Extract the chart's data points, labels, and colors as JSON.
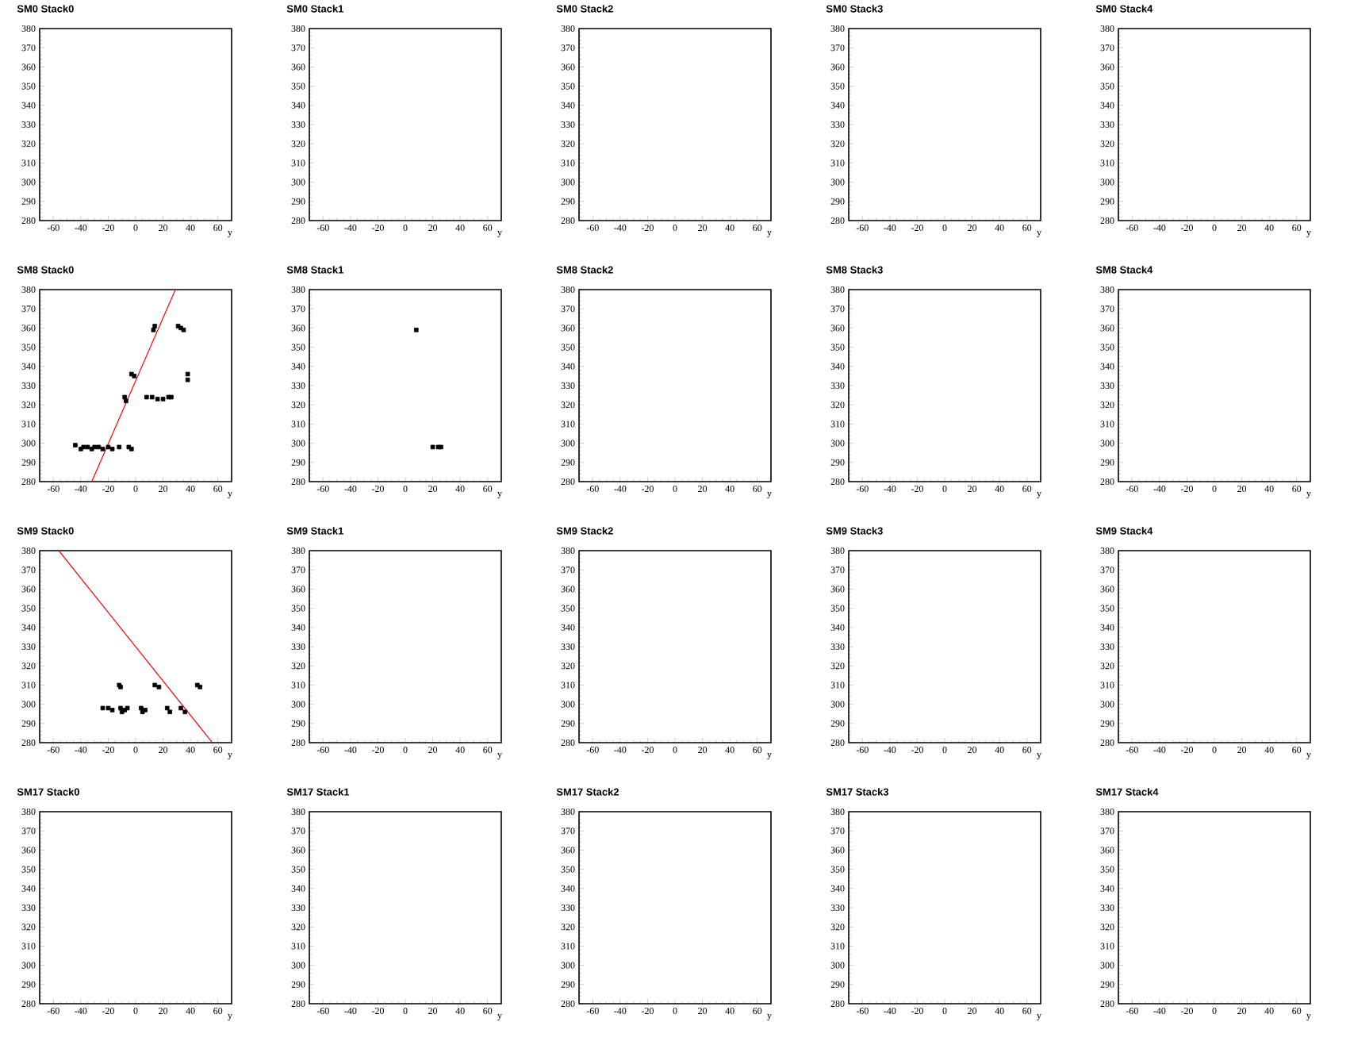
{
  "chart_data": [
    {
      "type": "scatter",
      "title": "SM0 Stack0",
      "xlabel": "y",
      "xlim": [
        -70,
        70
      ],
      "ylim": [
        280,
        380
      ],
      "xticks": [
        -60,
        -40,
        -20,
        0,
        20,
        40,
        60
      ],
      "yticks": [
        280,
        290,
        300,
        310,
        320,
        330,
        340,
        350,
        360,
        370,
        380
      ]
    },
    {
      "type": "scatter",
      "title": "SM0 Stack1",
      "xlabel": "y",
      "xlim": [
        -70,
        70
      ],
      "ylim": [
        280,
        380
      ],
      "xticks": [
        -60,
        -40,
        -20,
        0,
        20,
        40,
        60
      ],
      "yticks": [
        280,
        290,
        300,
        310,
        320,
        330,
        340,
        350,
        360,
        370,
        380
      ]
    },
    {
      "type": "scatter",
      "title": "SM0 Stack2",
      "xlabel": "y",
      "xlim": [
        -70,
        70
      ],
      "ylim": [
        280,
        380
      ],
      "xticks": [
        -60,
        -40,
        -20,
        0,
        20,
        40,
        60
      ],
      "yticks": [
        280,
        290,
        300,
        310,
        320,
        330,
        340,
        350,
        360,
        370,
        380
      ]
    },
    {
      "type": "scatter",
      "title": "SM0 Stack3",
      "xlabel": "y",
      "xlim": [
        -70,
        70
      ],
      "ylim": [
        280,
        380
      ],
      "xticks": [
        -60,
        -40,
        -20,
        0,
        20,
        40,
        60
      ],
      "yticks": [
        280,
        290,
        300,
        310,
        320,
        330,
        340,
        350,
        360,
        370,
        380
      ]
    },
    {
      "type": "scatter",
      "title": "SM0 Stack4",
      "xlabel": "y",
      "xlim": [
        -70,
        70
      ],
      "ylim": [
        280,
        380
      ],
      "xticks": [
        -60,
        -40,
        -20,
        0,
        20,
        40,
        60
      ],
      "yticks": [
        280,
        290,
        300,
        310,
        320,
        330,
        340,
        350,
        360,
        370,
        380
      ]
    },
    {
      "type": "scatter",
      "title": "SM8 Stack0",
      "xlabel": "y",
      "xlim": [
        -70,
        70
      ],
      "ylim": [
        280,
        380
      ],
      "xticks": [
        -60,
        -40,
        -20,
        0,
        20,
        40,
        60
      ],
      "yticks": [
        280,
        290,
        300,
        310,
        320,
        330,
        340,
        350,
        360,
        370,
        380
      ],
      "marker": "square",
      "series": [
        {
          "color": "#000000",
          "x": [
            -44,
            -40,
            -38,
            -35,
            -32,
            -30,
            -27,
            -24,
            -20,
            -17,
            -12,
            -5,
            -3,
            -8,
            -7,
            -3,
            -1,
            13,
            14,
            8,
            12,
            16,
            20,
            24,
            26,
            31,
            33,
            35,
            38,
            38
          ],
          "values": [
            299,
            297,
            298,
            298,
            297,
            298,
            298,
            297,
            298,
            297,
            298,
            298,
            297,
            324,
            322,
            336,
            335,
            359,
            361,
            324,
            324,
            323,
            323,
            324,
            324,
            361,
            360,
            359,
            336,
            333
          ]
        },
        {
          "type": "line",
          "marker": "none",
          "color": "#ff0000",
          "x": [
            -32,
            29
          ],
          "values": [
            280,
            380
          ]
        }
      ]
    },
    {
      "type": "scatter",
      "title": "SM8 Stack1",
      "xlabel": "y",
      "xlim": [
        -70,
        70
      ],
      "ylim": [
        280,
        380
      ],
      "xticks": [
        -60,
        -40,
        -20,
        0,
        20,
        40,
        60
      ],
      "yticks": [
        280,
        290,
        300,
        310,
        320,
        330,
        340,
        350,
        360,
        370,
        380
      ],
      "marker": "square",
      "series": [
        {
          "color": "#000000",
          "x": [
            8,
            20,
            24,
            26
          ],
          "values": [
            359,
            298,
            298,
            298
          ]
        }
      ]
    },
    {
      "type": "scatter",
      "title": "SM8 Stack2",
      "xlabel": "y",
      "xlim": [
        -70,
        70
      ],
      "ylim": [
        280,
        380
      ],
      "xticks": [
        -60,
        -40,
        -20,
        0,
        20,
        40,
        60
      ],
      "yticks": [
        280,
        290,
        300,
        310,
        320,
        330,
        340,
        350,
        360,
        370,
        380
      ]
    },
    {
      "type": "scatter",
      "title": "SM8 Stack3",
      "xlabel": "y",
      "xlim": [
        -70,
        70
      ],
      "ylim": [
        280,
        380
      ],
      "xticks": [
        -60,
        -40,
        -20,
        0,
        20,
        40,
        60
      ],
      "yticks": [
        280,
        290,
        300,
        310,
        320,
        330,
        340,
        350,
        360,
        370,
        380
      ]
    },
    {
      "type": "scatter",
      "title": "SM8 Stack4",
      "xlabel": "y",
      "xlim": [
        -70,
        70
      ],
      "ylim": [
        280,
        380
      ],
      "xticks": [
        -60,
        -40,
        -20,
        0,
        20,
        40,
        60
      ],
      "yticks": [
        280,
        290,
        300,
        310,
        320,
        330,
        340,
        350,
        360,
        370,
        380
      ]
    },
    {
      "type": "scatter",
      "title": "SM9 Stack0",
      "xlabel": "y",
      "xlim": [
        -70,
        70
      ],
      "ylim": [
        280,
        380
      ],
      "xticks": [
        -60,
        -40,
        -20,
        0,
        20,
        40,
        60
      ],
      "yticks": [
        280,
        290,
        300,
        310,
        320,
        330,
        340,
        350,
        360,
        370,
        380
      ],
      "marker": "square",
      "series": [
        {
          "color": "#000000",
          "x": [
            -24,
            -20,
            -17,
            -11,
            -8,
            -6,
            -10,
            4,
            7,
            5,
            -12,
            -11,
            14,
            17,
            23,
            25,
            33,
            36,
            45,
            47
          ],
          "values": [
            298,
            298,
            297,
            298,
            297,
            298,
            296,
            298,
            297,
            296,
            310,
            309,
            310,
            309,
            298,
            296,
            298,
            296,
            310,
            309
          ]
        },
        {
          "type": "line",
          "marker": "none",
          "color": "#ff0000",
          "x": [
            -56,
            56
          ],
          "values": [
            380,
            280
          ]
        }
      ]
    },
    {
      "type": "scatter",
      "title": "SM9 Stack1",
      "xlabel": "y",
      "xlim": [
        -70,
        70
      ],
      "ylim": [
        280,
        380
      ],
      "xticks": [
        -60,
        -40,
        -20,
        0,
        20,
        40,
        60
      ],
      "yticks": [
        280,
        290,
        300,
        310,
        320,
        330,
        340,
        350,
        360,
        370,
        380
      ]
    },
    {
      "type": "scatter",
      "title": "SM9 Stack2",
      "xlabel": "y",
      "xlim": [
        -70,
        70
      ],
      "ylim": [
        280,
        380
      ],
      "xticks": [
        -60,
        -40,
        -20,
        0,
        20,
        40,
        60
      ],
      "yticks": [
        280,
        290,
        300,
        310,
        320,
        330,
        340,
        350,
        360,
        370,
        380
      ]
    },
    {
      "type": "scatter",
      "title": "SM9 Stack3",
      "xlabel": "y",
      "xlim": [
        -70,
        70
      ],
      "ylim": [
        280,
        380
      ],
      "xticks": [
        -60,
        -40,
        -20,
        0,
        20,
        40,
        60
      ],
      "yticks": [
        280,
        290,
        300,
        310,
        320,
        330,
        340,
        350,
        360,
        370,
        380
      ]
    },
    {
      "type": "scatter",
      "title": "SM9 Stack4",
      "xlabel": "y",
      "xlim": [
        -70,
        70
      ],
      "ylim": [
        280,
        380
      ],
      "xticks": [
        -60,
        -40,
        -20,
        0,
        20,
        40,
        60
      ],
      "yticks": [
        280,
        290,
        300,
        310,
        320,
        330,
        340,
        350,
        360,
        370,
        380
      ]
    },
    {
      "type": "scatter",
      "title": "SM17 Stack0",
      "xlabel": "y",
      "xlim": [
        -70,
        70
      ],
      "ylim": [
        280,
        380
      ],
      "xticks": [
        -60,
        -40,
        -20,
        0,
        20,
        40,
        60
      ],
      "yticks": [
        280,
        290,
        300,
        310,
        320,
        330,
        340,
        350,
        360,
        370,
        380
      ]
    },
    {
      "type": "scatter",
      "title": "SM17 Stack1",
      "xlabel": "y",
      "xlim": [
        -70,
        70
      ],
      "ylim": [
        280,
        380
      ],
      "xticks": [
        -60,
        -40,
        -20,
        0,
        20,
        40,
        60
      ],
      "yticks": [
        280,
        290,
        300,
        310,
        320,
        330,
        340,
        350,
        360,
        370,
        380
      ]
    },
    {
      "type": "scatter",
      "title": "SM17 Stack2",
      "xlabel": "y",
      "xlim": [
        -70,
        70
      ],
      "ylim": [
        280,
        380
      ],
      "xticks": [
        -60,
        -40,
        -20,
        0,
        20,
        40,
        60
      ],
      "yticks": [
        280,
        290,
        300,
        310,
        320,
        330,
        340,
        350,
        360,
        370,
        380
      ]
    },
    {
      "type": "scatter",
      "title": "SM17 Stack3",
      "xlabel": "y",
      "xlim": [
        -70,
        70
      ],
      "ylim": [
        280,
        380
      ],
      "xticks": [
        -60,
        -40,
        -20,
        0,
        20,
        40,
        60
      ],
      "yticks": [
        280,
        290,
        300,
        310,
        320,
        330,
        340,
        350,
        360,
        370,
        380
      ]
    },
    {
      "type": "scatter",
      "title": "SM17 Stack4",
      "xlabel": "y",
      "xlim": [
        -70,
        70
      ],
      "ylim": [
        280,
        380
      ],
      "xticks": [
        -60,
        -40,
        -20,
        0,
        20,
        40,
        60
      ],
      "yticks": [
        280,
        290,
        300,
        310,
        320,
        330,
        340,
        350,
        360,
        370,
        380
      ]
    }
  ]
}
